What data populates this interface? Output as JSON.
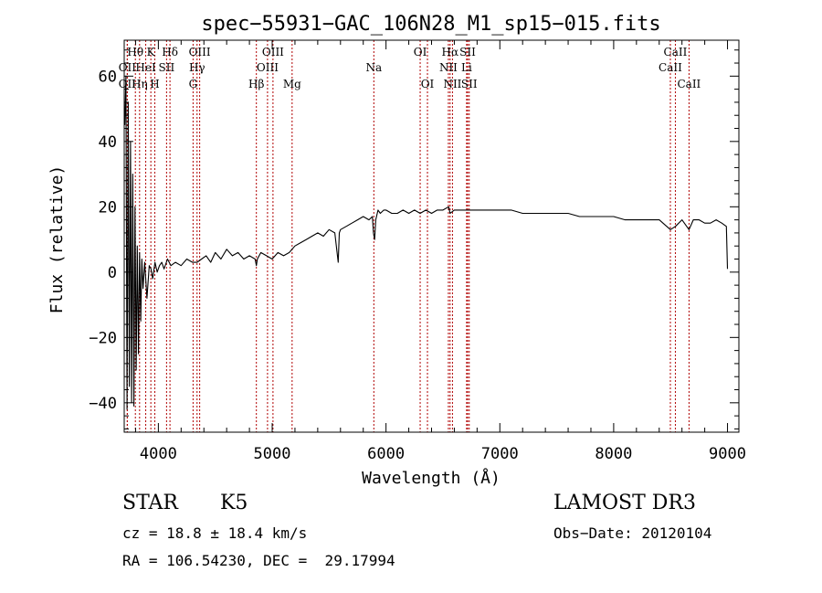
{
  "chart_data": {
    "type": "line",
    "title": "spec−55931−GAC_106N28_M1_sp15−015.fits",
    "xlabel": "Wavelength (Å)",
    "ylabel": "Flux (relative)",
    "xlim": [
      3700,
      9100
    ],
    "ylim": [
      -49,
      71
    ],
    "x_ticks": [
      4000,
      5000,
      6000,
      7000,
      8000,
      9000
    ],
    "y_ticks": [
      -40,
      -20,
      0,
      20,
      40,
      60
    ],
    "x_tick_labels": [
      "4000",
      "5000",
      "6000",
      "7000",
      "8000",
      "9000"
    ],
    "y_tick_labels": [
      "−40",
      "−20",
      "0",
      "20",
      "40",
      "60"
    ],
    "spectrum": {
      "name": "flux",
      "x": [
        3705,
        3715,
        3725,
        3735,
        3745,
        3755,
        3765,
        3775,
        3785,
        3795,
        3805,
        3815,
        3825,
        3835,
        3845,
        3855,
        3865,
        3880,
        3900,
        3920,
        3935,
        3950,
        3970,
        3990,
        4010,
        4030,
        4050,
        4080,
        4110,
        4150,
        4200,
        4250,
        4300,
        4340,
        4380,
        4420,
        4460,
        4500,
        4550,
        4600,
        4650,
        4700,
        4750,
        4800,
        4850,
        4861,
        4870,
        4900,
        4950,
        5000,
        5050,
        5100,
        5150,
        5200,
        5250,
        5300,
        5350,
        5400,
        5450,
        5500,
        5550,
        5580,
        5590,
        5600,
        5650,
        5700,
        5750,
        5800,
        5850,
        5880,
        5890,
        5900,
        5910,
        5930,
        5950,
        5980,
        6000,
        6050,
        6100,
        6150,
        6200,
        6250,
        6300,
        6350,
        6400,
        6450,
        6500,
        6550,
        6563,
        6600,
        6650,
        6700,
        6750,
        6800,
        6900,
        7000,
        7100,
        7200,
        7300,
        7400,
        7500,
        7600,
        7700,
        7800,
        7900,
        8000,
        8100,
        8200,
        8300,
        8400,
        8498,
        8542,
        8600,
        8662,
        8700,
        8750,
        8800,
        8850,
        8900,
        8950,
        8990,
        9000
      ],
      "y": [
        45,
        60,
        -42,
        52,
        -35,
        40,
        -40,
        30,
        -41,
        20,
        -30,
        8,
        -25,
        6,
        -15,
        4,
        -5,
        3,
        -8,
        2,
        1,
        -2,
        3,
        0,
        2,
        3,
        1,
        4,
        2,
        3,
        2,
        4,
        3,
        3,
        4,
        5,
        3,
        6,
        4,
        7,
        5,
        6,
        4,
        5,
        4,
        2,
        4,
        6,
        5,
        4,
        6,
        5,
        6,
        8,
        9,
        10,
        11,
        12,
        11,
        13,
        12,
        3,
        12,
        13,
        14,
        15,
        16,
        17,
        16,
        17,
        12,
        10,
        16,
        19,
        18,
        19,
        19,
        18,
        18,
        19,
        18,
        19,
        18,
        19,
        18,
        19,
        19,
        20,
        18,
        19,
        19,
        19,
        19,
        19,
        19,
        19,
        19,
        18,
        18,
        18,
        18,
        18,
        17,
        17,
        17,
        17,
        16,
        16,
        16,
        16,
        13,
        14,
        16,
        13,
        16,
        16,
        15,
        15,
        16,
        15,
        14,
        1
      ]
    },
    "lines": [
      {
        "label": "Hθ",
        "x": 3798,
        "row": 1
      },
      {
        "label": "OII",
        "x": 3727,
        "row": 2
      },
      {
        "label": "OII",
        "x": 3727,
        "row": 3
      },
      {
        "label": "K",
        "x": 3934,
        "row": 1
      },
      {
        "label": "HeI",
        "x": 3889,
        "row": 2
      },
      {
        "label": "Hη",
        "x": 3835,
        "row": 3
      },
      {
        "label": "SII",
        "x": 4072,
        "row": 2
      },
      {
        "label": "H",
        "x": 3969,
        "row": 3
      },
      {
        "label": "Hδ",
        "x": 4102,
        "row": 1
      },
      {
        "label": "OIII",
        "x": 4363,
        "row": 1
      },
      {
        "label": "Hγ",
        "x": 4340,
        "row": 2
      },
      {
        "label": "G",
        "x": 4305,
        "row": 3
      },
      {
        "label": "OIII",
        "x": 5007,
        "row": 1
      },
      {
        "label": "OIII",
        "x": 4959,
        "row": 2
      },
      {
        "label": "Hβ",
        "x": 4861,
        "row": 3
      },
      {
        "label": "Mg",
        "x": 5175,
        "row": 3
      },
      {
        "label": "Na",
        "x": 5893,
        "row": 2
      },
      {
        "label": "OI",
        "x": 6300,
        "row": 1
      },
      {
        "label": "OI",
        "x": 6364,
        "row": 3
      },
      {
        "label": "Hα",
        "x": 6563,
        "row": 1
      },
      {
        "label": "NII",
        "x": 6548,
        "row": 2
      },
      {
        "label": "NII",
        "x": 6584,
        "row": 3
      },
      {
        "label": "SII",
        "x": 6717,
        "row": 1
      },
      {
        "label": "Li",
        "x": 6708,
        "row": 2
      },
      {
        "label": "SII",
        "x": 6731,
        "row": 3
      },
      {
        "label": "CaII",
        "x": 8542,
        "row": 1
      },
      {
        "label": "CaII",
        "x": 8498,
        "row": 2
      },
      {
        "label": "CaII",
        "x": 8662,
        "row": 3
      }
    ]
  },
  "info": {
    "class": "STAR",
    "subclass": "K5",
    "survey": "LAMOST DR3",
    "cz": "cz = 18.8 ± 18.4 km/s",
    "obs_date": "Obs−Date: 20120104",
    "coords": "RA = 106.54230, DEC =  29.17994"
  },
  "colors": {
    "axis": "#000000",
    "spectrum": "#000000",
    "line_marker": "#b00000"
  }
}
